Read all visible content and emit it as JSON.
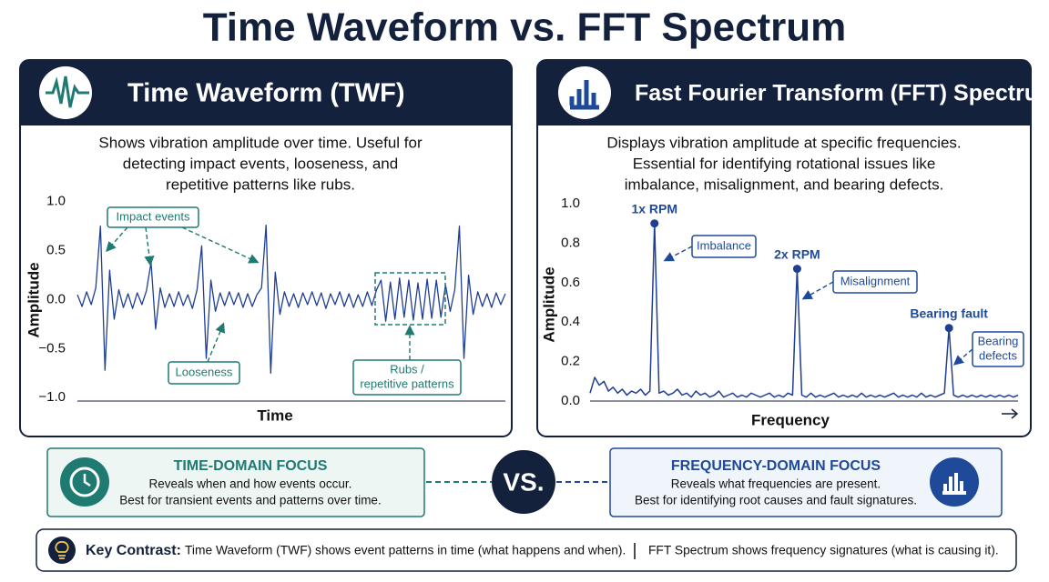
{
  "title": "Time Waveform vs. FFT Spectrum",
  "panels": [
    {
      "header": "Time Waveform (TWF)",
      "description": [
        "Shows vibration amplitude over time. Useful for",
        "detecting impact events, looseness, and",
        "repetitive patterns like rubs."
      ]
    },
    {
      "header": "Fast Fourier Transform (FFT) Spectrum",
      "description": [
        "Displays vibration amplitude at specific frequencies.",
        "Essential for identifying rotational issues like",
        "imbalance, misalignment, and bearing defects."
      ]
    }
  ],
  "chart_data": [
    {
      "type": "line",
      "xlabel": "Time",
      "ylabel": "Amplitude",
      "color": "#1f3f94",
      "ylim": [
        -1.1,
        1.1
      ],
      "yticks": [
        {
          "value": 1,
          "label": "1.0"
        },
        0.5,
        {
          "value": 0,
          "label": "0.0"
        },
        {
          "value": -0.5,
          "label": "−0.5"
        },
        {
          "value": -1,
          "label": "−1.0"
        }
      ],
      "values": [
        0.05,
        -0.07,
        0.08,
        -0.05,
        0.12,
        0.75,
        -0.72,
        0.3,
        -0.2,
        0.1,
        -0.08,
        0.06,
        -0.09,
        0.07,
        -0.05,
        0.09,
        0.38,
        -0.3,
        0.12,
        -0.08,
        0.06,
        -0.07,
        0.08,
        -0.06,
        0.05,
        -0.09,
        0.1,
        0.55,
        -0.6,
        0.2,
        -0.12,
        0.07,
        -0.06,
        0.08,
        -0.05,
        0.07,
        -0.08,
        0.06,
        -0.07,
        0.05,
        0.12,
        0.76,
        -0.75,
        0.28,
        -0.15,
        0.08,
        -0.07,
        0.06,
        -0.08,
        0.07,
        -0.05,
        0.08,
        -0.06,
        0.07,
        -0.09,
        0.06,
        -0.05,
        0.08,
        -0.07,
        0.06,
        -0.08,
        0.05,
        -0.07,
        0.08,
        -0.06,
        0.1,
        0.2,
        -0.22,
        0.18,
        -0.2,
        0.22,
        -0.18,
        0.2,
        -0.21,
        0.17,
        -0.2,
        0.21,
        -0.19,
        0.2,
        -0.18,
        0.15,
        -0.12,
        0.1,
        0.75,
        -0.6,
        0.25,
        -0.15,
        0.08,
        -0.07,
        0.06,
        -0.08,
        0.07,
        -0.05,
        0.06
      ],
      "annotations": [
        [
          "Impact events"
        ],
        [
          "Looseness"
        ],
        [
          "Rubs /",
          "repetitive patterns"
        ]
      ]
    },
    {
      "type": "line",
      "xlabel": "Frequency",
      "ylabel": "Amplitude",
      "color": "#1f3f94",
      "ylim": [
        0,
        1.0
      ],
      "yticks": [
        {
          "value": 0,
          "label": "0.0"
        },
        0.2,
        0.4,
        0.6,
        0.8,
        {
          "value": 1,
          "label": "1.0"
        }
      ],
      "values": [
        0.04,
        0.12,
        0.08,
        0.1,
        0.05,
        0.07,
        0.04,
        0.06,
        0.03,
        0.05,
        0.04,
        0.06,
        0.03,
        0.05,
        0.9,
        0.04,
        0.05,
        0.03,
        0.04,
        0.06,
        0.03,
        0.04,
        0.02,
        0.05,
        0.03,
        0.04,
        0.02,
        0.03,
        0.05,
        0.02,
        0.03,
        0.04,
        0.02,
        0.03,
        0.02,
        0.04,
        0.03,
        0.02,
        0.03,
        0.04,
        0.02,
        0.03,
        0.02,
        0.04,
        0.03,
        0.67,
        0.03,
        0.02,
        0.04,
        0.02,
        0.03,
        0.02,
        0.03,
        0.04,
        0.02,
        0.03,
        0.02,
        0.03,
        0.02,
        0.04,
        0.02,
        0.03,
        0.02,
        0.03,
        0.02,
        0.03,
        0.04,
        0.02,
        0.03,
        0.02,
        0.03,
        0.02,
        0.04,
        0.02,
        0.03,
        0.02,
        0.03,
        0.04,
        0.37,
        0.03,
        0.02,
        0.03,
        0.02,
        0.03,
        0.02,
        0.03,
        0.02,
        0.03,
        0.02,
        0.03,
        0.02,
        0.03,
        0.02,
        0.03
      ],
      "peak_labels": [
        "1x RPM",
        "2x RPM",
        "Bearing fault"
      ],
      "annotations": [
        [
          "Imbalance"
        ],
        [
          "Misalignment"
        ],
        [
          "Bearing",
          "defects"
        ]
      ]
    }
  ],
  "focus": [
    {
      "title": "TIME-DOMAIN FOCUS",
      "lines": [
        "Reveals when and how events occur.",
        "Best for transient events and patterns over time."
      ]
    },
    {
      "title": "FREQUENCY-DOMAIN FOCUS",
      "lines": [
        "Reveals what frequencies are present.",
        "Best for identifying root causes and fault signatures."
      ]
    }
  ],
  "vs": "VS.",
  "key_contrast": {
    "label": "Key Contrast:",
    "items": [
      "Time Waveform (TWF) shows event patterns in time (what happens and when).",
      "FFT Spectrum shows frequency signatures (what is causing it)."
    ]
  }
}
